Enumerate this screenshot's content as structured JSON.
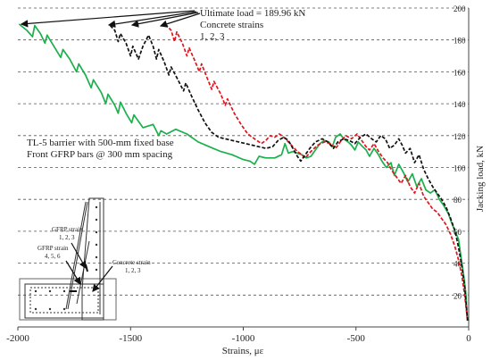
{
  "chart_data": {
    "type": "line",
    "xlabel": "Strains, με",
    "ylabel": "Jacking load, kN",
    "xlim": [
      -2000,
      0
    ],
    "ylim": [
      0,
      200
    ],
    "x_ticks": [
      -2000,
      -1500,
      -1000,
      -500,
      0
    ],
    "x_tick_labels": [
      "-2000",
      "-1500",
      "-1000",
      "-500",
      "0"
    ],
    "y_ticks": [
      20,
      40,
      60,
      80,
      100,
      120,
      140,
      160,
      180,
      200
    ],
    "y_tick_labels": [
      "20",
      "40",
      "60",
      "80",
      "100",
      "120",
      "140",
      "160",
      "180",
      "200"
    ],
    "grid": "horizontal dashed",
    "annotations": {
      "ultimate_load": "Ultimate load = 189.96 kN",
      "concrete_strains": "Concrete strains",
      "concrete_strains_ids": "1, 2, 3",
      "barrier_desc": "TL-5 barrier with 500-mm fixed base",
      "bars_desc": "Front GFRP bars @ 300 mm spacing",
      "gfrp_strain_a": "GFRP strain",
      "gfrp_strain_a_ids": "1, 2, 3",
      "gfrp_strain_b": "GFRP strain",
      "gfrp_strain_b_ids": "4, 5, 6",
      "concrete_strain": "Concrete strain",
      "concrete_strain_ids": "1, 2, 3"
    },
    "series": [
      {
        "color": "#1bb04c",
        "style": "solid",
        "points": [
          [
            -1995,
            190
          ],
          [
            -1960,
            186
          ],
          [
            -1935,
            182
          ],
          [
            -1925,
            189
          ],
          [
            -1900,
            184
          ],
          [
            -1880,
            178
          ],
          [
            -1870,
            183
          ],
          [
            -1840,
            176
          ],
          [
            -1810,
            169
          ],
          [
            -1800,
            174
          ],
          [
            -1770,
            168
          ],
          [
            -1740,
            160
          ],
          [
            -1730,
            165
          ],
          [
            -1700,
            158
          ],
          [
            -1675,
            150
          ],
          [
            -1665,
            155
          ],
          [
            -1630,
            147
          ],
          [
            -1610,
            140
          ],
          [
            -1600,
            146
          ],
          [
            -1570,
            139
          ],
          [
            -1555,
            134
          ],
          [
            -1545,
            141
          ],
          [
            -1520,
            134
          ],
          [
            -1495,
            128
          ],
          [
            -1485,
            133
          ],
          [
            -1445,
            125
          ],
          [
            -1400,
            127
          ],
          [
            -1375,
            120
          ],
          [
            -1365,
            123
          ],
          [
            -1340,
            121
          ],
          [
            -1300,
            124
          ],
          [
            -1250,
            121
          ],
          [
            -1200,
            116
          ],
          [
            -1150,
            113
          ],
          [
            -1100,
            110
          ],
          [
            -1050,
            108
          ],
          [
            -1000,
            105
          ],
          [
            -970,
            104
          ],
          [
            -950,
            102
          ],
          [
            -930,
            107
          ],
          [
            -900,
            106
          ],
          [
            -860,
            106
          ],
          [
            -830,
            108
          ],
          [
            -815,
            115
          ],
          [
            -800,
            109
          ],
          [
            -780,
            110
          ],
          [
            -760,
            109
          ],
          [
            -740,
            108
          ],
          [
            -720,
            106
          ],
          [
            -700,
            107
          ],
          [
            -680,
            111
          ],
          [
            -660,
            115
          ],
          [
            -640,
            117
          ],
          [
            -620,
            116
          ],
          [
            -605,
            113
          ],
          [
            -590,
            119
          ],
          [
            -570,
            121
          ],
          [
            -555,
            118
          ],
          [
            -535,
            116
          ],
          [
            -520,
            114
          ],
          [
            -505,
            111
          ],
          [
            -490,
            116
          ],
          [
            -470,
            113
          ],
          [
            -455,
            111
          ],
          [
            -440,
            107
          ],
          [
            -420,
            112
          ],
          [
            -400,
            108
          ],
          [
            -385,
            104
          ],
          [
            -365,
            100
          ],
          [
            -345,
            103
          ],
          [
            -330,
            95
          ],
          [
            -310,
            102
          ],
          [
            -290,
            97
          ],
          [
            -270,
            91
          ],
          [
            -250,
            96
          ],
          [
            -230,
            88
          ],
          [
            -210,
            93
          ],
          [
            -190,
            86
          ],
          [
            -170,
            84
          ],
          [
            -150,
            86
          ],
          [
            -130,
            80
          ],
          [
            -110,
            76
          ],
          [
            -90,
            71
          ],
          [
            -75,
            65
          ],
          [
            -60,
            60
          ],
          [
            -45,
            55
          ],
          [
            -30,
            40
          ],
          [
            -20,
            30
          ],
          [
            -12,
            20
          ],
          [
            -8,
            10
          ],
          [
            -5,
            4
          ]
        ]
      },
      {
        "color": "#e0141c",
        "style": "dashed",
        "points": [
          [
            -1345,
            190
          ],
          [
            -1320,
            186
          ],
          [
            -1305,
            179
          ],
          [
            -1295,
            185
          ],
          [
            -1270,
            178
          ],
          [
            -1250,
            170
          ],
          [
            -1240,
            175
          ],
          [
            -1215,
            167
          ],
          [
            -1195,
            160
          ],
          [
            -1185,
            165
          ],
          [
            -1160,
            156
          ],
          [
            -1140,
            149
          ],
          [
            -1130,
            154
          ],
          [
            -1100,
            146
          ],
          [
            -1080,
            139
          ],
          [
            -1070,
            143
          ],
          [
            -1040,
            134
          ],
          [
            -1010,
            127
          ],
          [
            -980,
            121
          ],
          [
            -950,
            118
          ],
          [
            -920,
            115
          ],
          [
            -900,
            117
          ],
          [
            -880,
            120
          ],
          [
            -860,
            119
          ],
          [
            -840,
            121
          ],
          [
            -820,
            119
          ],
          [
            -800,
            116
          ],
          [
            -780,
            113
          ],
          [
            -760,
            110
          ],
          [
            -740,
            108
          ],
          [
            -725,
            106
          ],
          [
            -700,
            110
          ],
          [
            -670,
            114
          ],
          [
            -640,
            116
          ],
          [
            -615,
            115
          ],
          [
            -590,
            112
          ],
          [
            -570,
            116
          ],
          [
            -545,
            120
          ],
          [
            -520,
            118
          ],
          [
            -495,
            121
          ],
          [
            -475,
            117
          ],
          [
            -455,
            113
          ],
          [
            -440,
            111
          ],
          [
            -420,
            115
          ],
          [
            -400,
            110
          ],
          [
            -380,
            106
          ],
          [
            -360,
            103
          ],
          [
            -340,
            98
          ],
          [
            -320,
            94
          ],
          [
            -300,
            90
          ],
          [
            -280,
            95
          ],
          [
            -260,
            88
          ],
          [
            -240,
            84
          ],
          [
            -220,
            90
          ],
          [
            -200,
            82
          ],
          [
            -180,
            78
          ],
          [
            -160,
            74
          ],
          [
            -140,
            72
          ],
          [
            -120,
            68
          ],
          [
            -100,
            64
          ],
          [
            -80,
            58
          ],
          [
            -60,
            50
          ],
          [
            -45,
            42
          ],
          [
            -30,
            32
          ],
          [
            -18,
            20
          ],
          [
            -10,
            10
          ],
          [
            -5,
            4
          ]
        ]
      },
      {
        "color": "#111111",
        "style": "dashed",
        "points": [
          [
            -1590,
            189
          ],
          [
            -1570,
            186
          ],
          [
            -1555,
            179
          ],
          [
            -1545,
            184
          ],
          [
            -1520,
            178
          ],
          [
            -1500,
            170
          ],
          [
            -1490,
            176
          ],
          [
            -1465,
            168
          ],
          [
            -1445,
            176
          ],
          [
            -1420,
            183
          ],
          [
            -1400,
            176
          ],
          [
            -1385,
            168
          ],
          [
            -1375,
            174
          ],
          [
            -1350,
            166
          ],
          [
            -1330,
            158
          ],
          [
            -1320,
            163
          ],
          [
            -1290,
            155
          ],
          [
            -1265,
            148
          ],
          [
            -1255,
            153
          ],
          [
            -1230,
            145
          ],
          [
            -1200,
            136
          ],
          [
            -1170,
            128
          ],
          [
            -1140,
            122
          ],
          [
            -1110,
            119
          ],
          [
            -1080,
            118
          ],
          [
            -1050,
            117
          ],
          [
            -1020,
            116
          ],
          [
            -990,
            115
          ],
          [
            -960,
            114
          ],
          [
            -930,
            113
          ],
          [
            -900,
            112
          ],
          [
            -870,
            113
          ],
          [
            -845,
            117
          ],
          [
            -820,
            119
          ],
          [
            -800,
            117
          ],
          [
            -780,
            112
          ],
          [
            -760,
            107
          ],
          [
            -745,
            104
          ],
          [
            -730,
            107
          ],
          [
            -705,
            112
          ],
          [
            -680,
            116
          ],
          [
            -650,
            118
          ],
          [
            -625,
            116
          ],
          [
            -600,
            112
          ],
          [
            -580,
            116
          ],
          [
            -555,
            118
          ],
          [
            -530,
            117
          ],
          [
            -505,
            115
          ],
          [
            -480,
            119
          ],
          [
            -455,
            121
          ],
          [
            -430,
            118
          ],
          [
            -410,
            116
          ],
          [
            -390,
            120
          ],
          [
            -370,
            118
          ],
          [
            -350,
            112
          ],
          [
            -330,
            114
          ],
          [
            -310,
            118
          ],
          [
            -295,
            114
          ],
          [
            -280,
            109
          ],
          [
            -260,
            112
          ],
          [
            -240,
            103
          ],
          [
            -220,
            108
          ],
          [
            -200,
            99
          ],
          [
            -180,
            93
          ],
          [
            -160,
            88
          ],
          [
            -140,
            84
          ],
          [
            -120,
            80
          ],
          [
            -100,
            75
          ],
          [
            -80,
            68
          ],
          [
            -60,
            60
          ],
          [
            -45,
            50
          ],
          [
            -30,
            38
          ],
          [
            -18,
            25
          ],
          [
            -10,
            12
          ],
          [
            -5,
            4
          ]
        ]
      }
    ]
  }
}
